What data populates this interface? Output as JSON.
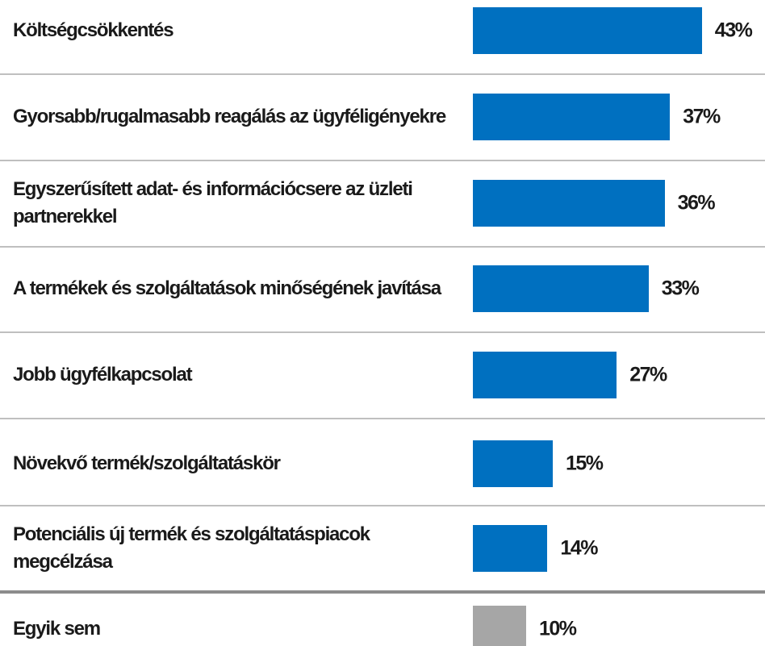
{
  "chart_data": {
    "type": "bar",
    "orientation": "horizontal",
    "categories": [
      "Költségcsökkentés",
      "Gyorsabb/rugalmasabb reagálás az ügyféligényekre",
      "Egyszerűsített adat- és információcsere az üzleti partnerekkel",
      "A termékek és szolgáltatások minőségének javítása",
      "Jobb ügyfélkapcsolat",
      "Növekvő termék/szolgáltatáskör",
      "Potenciális új termék és szolgáltatáspiacok megcélzása",
      "Egyik sem"
    ],
    "values": [
      43,
      37,
      36,
      33,
      27,
      15,
      14,
      10
    ],
    "value_labels": [
      "43%",
      "37%",
      "36%",
      "33%",
      "27%",
      "15%",
      "14%",
      "10%"
    ],
    "colors": [
      "#0070c0",
      "#0070c0",
      "#0070c0",
      "#0070c0",
      "#0070c0",
      "#0070c0",
      "#0070c0",
      "#a6a6a6"
    ]
  }
}
